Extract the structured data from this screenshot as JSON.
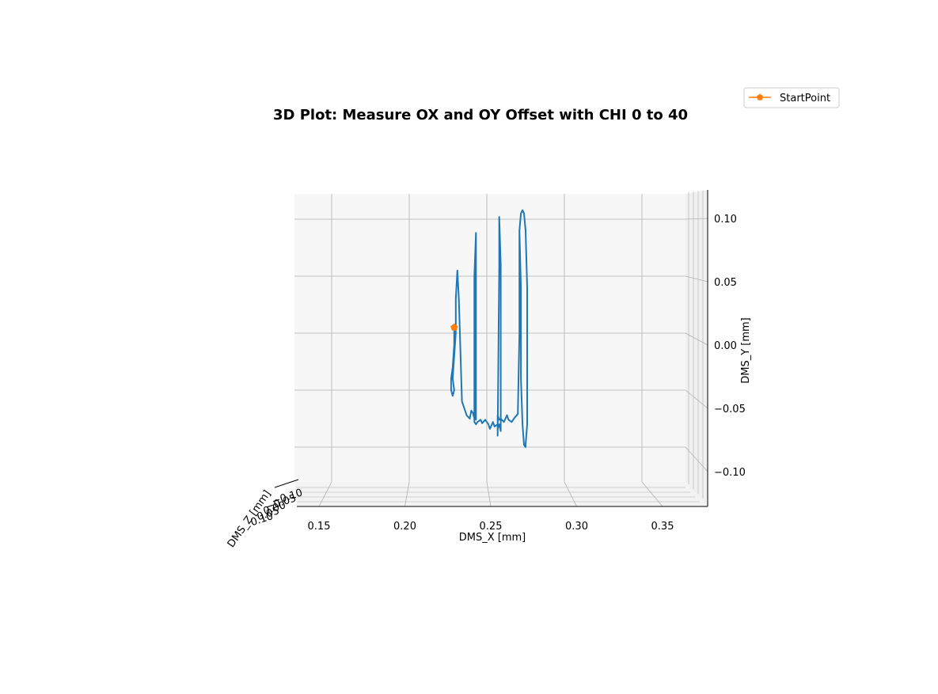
{
  "chart_data": {
    "type": "line",
    "projection": "3d",
    "title": "3D Plot: Measure OX and OY Offset with CHI 0 to 40",
    "xlabel": "DMS_X [mm]",
    "ylabel": "DMS_Y [mm]",
    "zlabel": "DMS_Z [mm]",
    "xlim": [
      0.135,
      0.375
    ],
    "ylim": [
      -0.125,
      0.125
    ],
    "x_ticks": [
      "0.15",
      "0.20",
      "0.25",
      "0.30",
      "0.35"
    ],
    "y_ticks": [
      "0.10",
      "0.05",
      "0.00",
      "−0.05",
      "−0.10"
    ],
    "z_ticks": [
      "0.10",
      "0.05",
      "0.00",
      "−0.05",
      "−0.10"
    ],
    "grid": true,
    "legend_position": "top-right",
    "series": [
      {
        "name": "",
        "color": "#1f77b4",
        "x": [
          0.229,
          0.229,
          0.228,
          0.227,
          0.227,
          0.228,
          0.229,
          0.228,
          0.229,
          0.23,
          0.23,
          0.231,
          0.232,
          0.234,
          0.236,
          0.237,
          0.239,
          0.24,
          0.241,
          0.242,
          0.242,
          0.243,
          0.243,
          0.243,
          0.243,
          0.243,
          0.242,
          0.242,
          0.242,
          0.243,
          0.244,
          0.246,
          0.247,
          0.249,
          0.251,
          0.252,
          0.254,
          0.255,
          0.257,
          0.257,
          0.258,
          0.258,
          0.259,
          0.259,
          0.258,
          0.257,
          0.257,
          0.257,
          0.258,
          0.259,
          0.261,
          0.263,
          0.264,
          0.266,
          0.268,
          0.27,
          0.271,
          0.271,
          0.272,
          0.273,
          0.274,
          0.275,
          0.276,
          0.276,
          0.276,
          0.275,
          0.275,
          0.274,
          0.273,
          0.272,
          0.272,
          0.271
        ],
        "y": [
          0.005,
          -0.01,
          -0.03,
          -0.04,
          -0.05,
          -0.055,
          -0.05,
          -0.04,
          -0.02,
          0.0,
          0.03,
          0.055,
          0.03,
          -0.06,
          -0.068,
          -0.072,
          -0.075,
          -0.068,
          -0.07,
          -0.075,
          0.05,
          0.088,
          0.05,
          -0.075,
          -0.068,
          -0.076,
          -0.072,
          -0.076,
          -0.078,
          -0.08,
          -0.078,
          -0.076,
          -0.079,
          -0.076,
          -0.08,
          -0.084,
          -0.078,
          -0.082,
          -0.08,
          -0.09,
          0.06,
          0.102,
          0.06,
          -0.086,
          -0.08,
          -0.084,
          -0.078,
          -0.072,
          -0.076,
          -0.075,
          -0.078,
          -0.072,
          -0.076,
          -0.078,
          -0.074,
          -0.071,
          0.0,
          0.09,
          0.105,
          0.108,
          0.105,
          0.09,
          0.04,
          -0.04,
          -0.08,
          -0.098,
          -0.1,
          -0.098,
          -0.08,
          -0.04,
          0.04,
          0.09
        ],
        "z": []
      },
      {
        "name": "StartPoint",
        "color": "#ff7f0e",
        "marker": "pentagon",
        "x": [
          0.229
        ],
        "y": [
          0.005
        ],
        "z": []
      }
    ]
  }
}
